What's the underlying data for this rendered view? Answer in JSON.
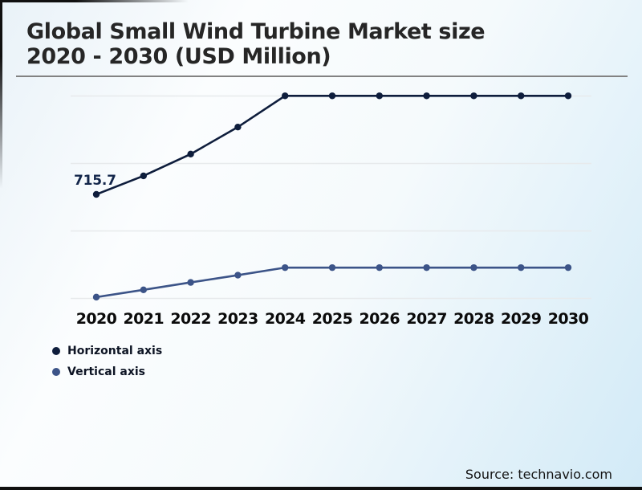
{
  "header": {
    "title_line1": "Global Small Wind Turbine Market size",
    "title_line2": "2020 - 2030 (USD Million)"
  },
  "source": "Source: technavio.com",
  "colors": {
    "series_dark": "#0e1d3c",
    "series_light": "#3c5488",
    "gridline": "#e7eaec",
    "title_text": "#262626",
    "background_tint": "#d2eaf7"
  },
  "legend": {
    "items": [
      {
        "label": "Horizontal axis",
        "color": "#0e1d3c"
      },
      {
        "label": "Vertical axis",
        "color": "#3c5488"
      }
    ]
  },
  "chart_data": {
    "type": "line",
    "title": "Global Small Wind Turbine Market size 2020 - 2030 (USD Million)",
    "categories": [
      "2020",
      "2021",
      "2022",
      "2023",
      "2024",
      "2025",
      "2026",
      "2027",
      "2028",
      "2029",
      "2030"
    ],
    "series": [
      {
        "name": "Horizontal axis",
        "color": "#0e1d3c",
        "values": [
          715.7,
          843,
          993,
          1179,
          1394,
          1394,
          1394,
          1394,
          1394,
          1394,
          1394
        ],
        "data_labels": [
          {
            "category": "2020",
            "text": "715.7"
          }
        ],
        "note": "only the 2020 point is labeled on the chart; later values estimated from pixel positions, flat from 2024 onward"
      },
      {
        "name": "Vertical axis",
        "color": "#3c5488",
        "values": [
          9,
          59,
          110,
          160,
          212,
          212,
          212,
          212,
          212,
          212,
          212
        ],
        "note": "no value labels shown; estimated from pixel positions, flat from 2024 onward"
      }
    ],
    "xlabel": "",
    "ylabel": "",
    "ylim": [
      0,
      1500
    ],
    "grid": "horizontal gridlines only, no visible y-axis tick labels",
    "legend_position": "bottom-left",
    "markers": "filled circles on every point"
  }
}
